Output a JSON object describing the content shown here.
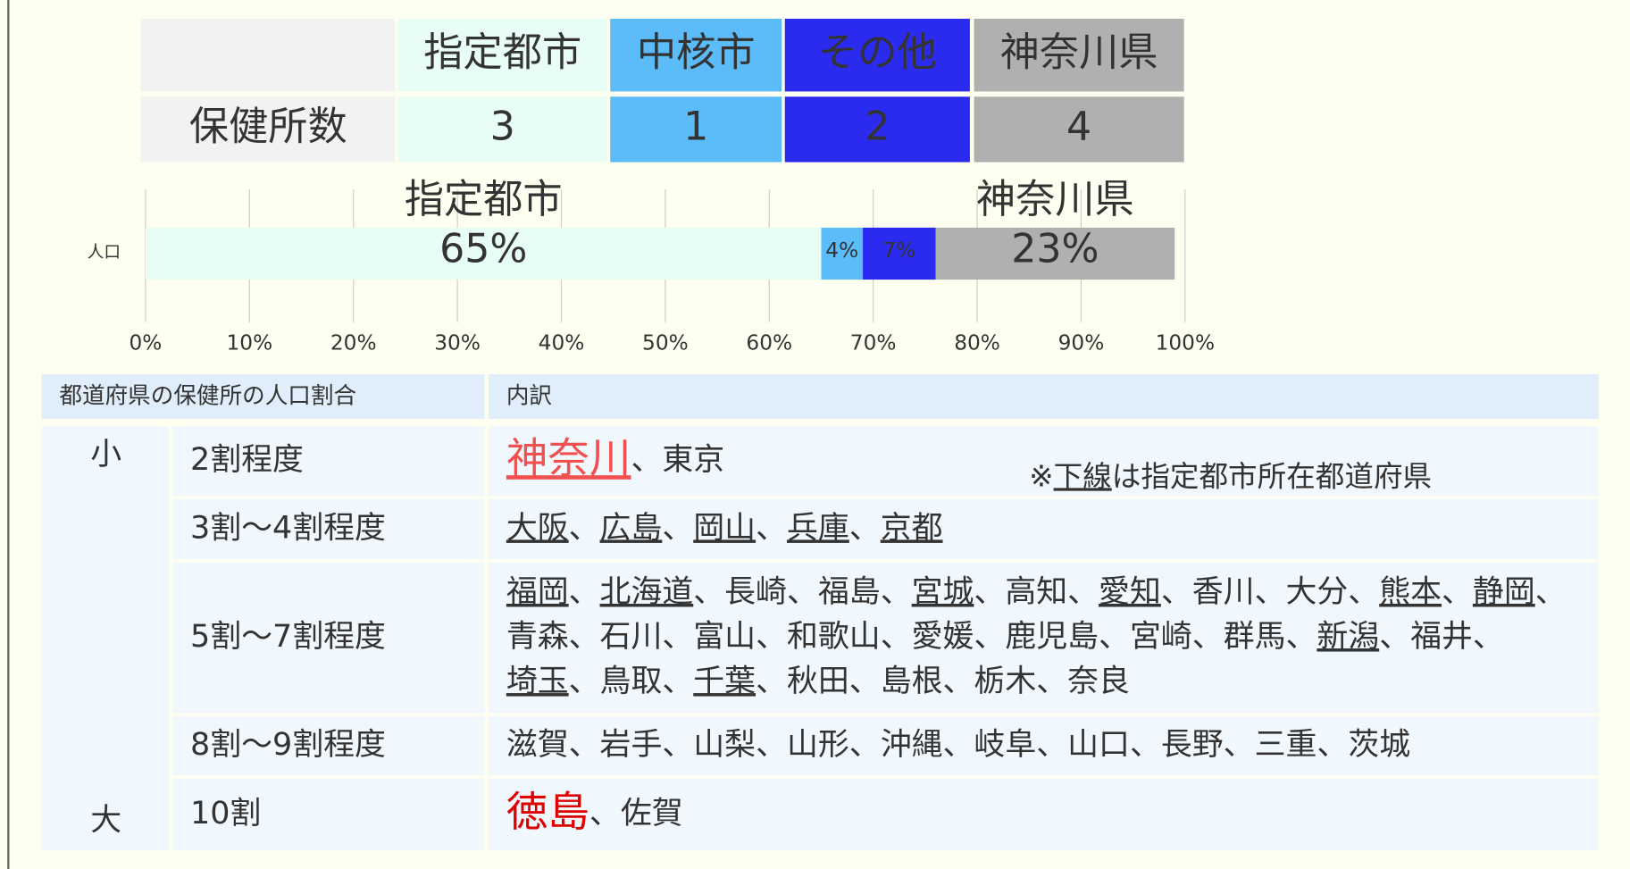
{
  "table": {
    "headers": [
      "指定都市",
      "中核市",
      "その他",
      "神奈川県"
    ],
    "colors": [
      "#e8fdf4",
      "#5bbcf9",
      "#2b2bf0",
      "#b0b0b0"
    ],
    "text_colors": [
      "#333333",
      "#ffffff",
      "#ffffff",
      "#ffffff"
    ],
    "row": {
      "label": "保健所数",
      "values": [
        3,
        1,
        2,
        4
      ]
    }
  },
  "chart_data": {
    "type": "bar",
    "orientation": "horizontal",
    "stacked": true,
    "categories": [
      "人口"
    ],
    "series": [
      {
        "color": "#e8fdf4",
        "label_color": "#111111",
        "values": [
          65
        ],
        "value_labels": [
          "65%"
        ]
      },
      {
        "color": "#5bbcf9",
        "label_color": "#ffffff",
        "values": [
          4
        ],
        "value_labels": [
          "4%"
        ]
      },
      {
        "color": "#2b2bf0",
        "label_color": "#ffffff",
        "values": [
          7
        ],
        "value_labels": [
          "7%"
        ]
      },
      {
        "color": "#b0b0b0",
        "label_color": "#ffffff",
        "values": [
          23
        ],
        "value_labels": [
          "23%"
        ]
      }
    ],
    "annotations": [
      {
        "text": "指定都市",
        "series": 0
      },
      {
        "text": "神奈川県",
        "series": 3
      }
    ],
    "xlim": [
      0,
      100
    ],
    "xticks": [
      {
        "value": 0,
        "label": "0%"
      },
      {
        "value": 10,
        "label": "10%"
      },
      {
        "value": 20,
        "label": "20%"
      },
      {
        "value": 30,
        "label": "30%"
      },
      {
        "value": 40,
        "label": "40%"
      },
      {
        "value": 50,
        "label": "50%"
      },
      {
        "value": 60,
        "label": "60%"
      },
      {
        "value": 70,
        "label": "70%"
      },
      {
        "value": 80,
        "label": "80%"
      },
      {
        "value": 90,
        "label": "90%"
      },
      {
        "value": 100,
        "label": "100%"
      }
    ],
    "grid": true
  },
  "breakdown": {
    "headers": [
      "都道府県の保健所の人口割合",
      "内訳"
    ],
    "scale": {
      "low": "小",
      "high": "大"
    },
    "separator": "、",
    "note": {
      "prefix": "※",
      "underlined": "下線",
      "rest": "は指定都市所在都道府県"
    },
    "rows": [
      {
        "label": "2割程度",
        "lines": [
          [
            {
              "name": "神奈川",
              "underline": true,
              "highlight": "#f05050"
            },
            {
              "name": "東京"
            }
          ]
        ]
      },
      {
        "label": "3割～4割程度",
        "lines": [
          [
            {
              "name": "大阪",
              "underline": true
            },
            {
              "name": "広島",
              "underline": true
            },
            {
              "name": "岡山",
              "underline": true
            },
            {
              "name": "兵庫",
              "underline": true
            },
            {
              "name": "京都",
              "underline": true
            }
          ]
        ]
      },
      {
        "label": "5割～7割程度",
        "lines": [
          [
            {
              "name": "福岡",
              "underline": true
            },
            {
              "name": "北海道",
              "underline": true
            },
            {
              "name": "長崎"
            },
            {
              "name": "福島"
            },
            {
              "name": "宮城",
              "underline": true
            },
            {
              "name": "高知"
            },
            {
              "name": "愛知",
              "underline": true
            },
            {
              "name": "香川"
            },
            {
              "name": "大分"
            },
            {
              "name": "熊本",
              "underline": true
            },
            {
              "name": "静岡",
              "underline": true
            }
          ],
          [
            {
              "name": "青森"
            },
            {
              "name": "石川"
            },
            {
              "name": "富山"
            },
            {
              "name": "和歌山"
            },
            {
              "name": "愛媛"
            },
            {
              "name": "鹿児島"
            },
            {
              "name": "宮崎"
            },
            {
              "name": "群馬"
            },
            {
              "name": "新潟",
              "underline": true
            },
            {
              "name": "福井"
            }
          ],
          [
            {
              "name": "埼玉",
              "underline": true
            },
            {
              "name": "鳥取"
            },
            {
              "name": "千葉",
              "underline": true
            },
            {
              "name": "秋田"
            },
            {
              "name": "島根"
            },
            {
              "name": "栃木"
            },
            {
              "name": "奈良"
            }
          ]
        ]
      },
      {
        "label": "8割～9割程度",
        "lines": [
          [
            {
              "name": "滋賀"
            },
            {
              "name": "岩手"
            },
            {
              "name": "山梨"
            },
            {
              "name": "山形"
            },
            {
              "name": "沖縄"
            },
            {
              "name": "岐阜"
            },
            {
              "name": "山口"
            },
            {
              "name": "長野"
            },
            {
              "name": "三重"
            },
            {
              "name": "茨城"
            }
          ]
        ]
      },
      {
        "label": "10割",
        "lines": [
          [
            {
              "name": "徳島",
              "highlight": "#e00000"
            },
            {
              "name": "佐賀"
            }
          ]
        ]
      }
    ]
  }
}
